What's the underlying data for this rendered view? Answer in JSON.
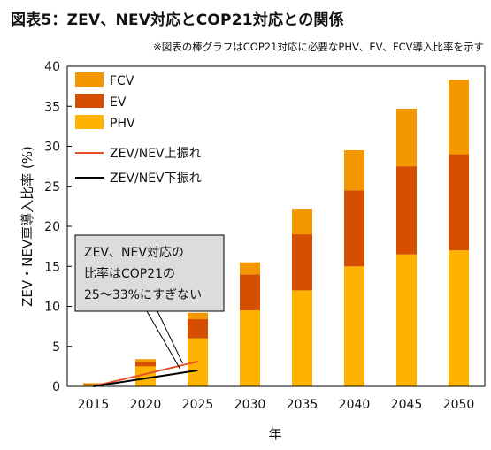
{
  "figure": {
    "title": "図表5：ZEV、NEV対応とCOP21対応との関係",
    "note": "※図表の棒グラフはCOP21対応に必要なPHV、EV、FCV導入比率を示す"
  },
  "chart_data": {
    "type": "bar",
    "stacked": true,
    "categories": [
      "2015",
      "2020",
      "2025",
      "2030",
      "2035",
      "2040",
      "2045",
      "2050"
    ],
    "series": [
      {
        "name": "PHV",
        "color": "#FFB300",
        "values": [
          0.2,
          2.5,
          6.0,
          9.5,
          12.0,
          15.0,
          16.5,
          17.0
        ]
      },
      {
        "name": "EV",
        "color": "#D64F00",
        "values": [
          0.1,
          0.5,
          2.4,
          4.5,
          7.0,
          9.5,
          11.0,
          12.0
        ]
      },
      {
        "name": "FCV",
        "color": "#F39800",
        "values": [
          0.1,
          0.4,
          0.8,
          1.5,
          3.2,
          5.0,
          7.2,
          9.3
        ]
      }
    ],
    "lines": [
      {
        "name": "ZEV/NEV上振れ",
        "color": "#E8502A",
        "x": [
          "2015",
          "2025"
        ],
        "y": [
          0,
          3.1
        ]
      },
      {
        "name": "ZEV/NEV下振れ",
        "color": "#000000",
        "x": [
          "2015",
          "2025"
        ],
        "y": [
          0,
          2.0
        ]
      }
    ],
    "ylabel": "ZEV・NEV車導入比率 (%)",
    "xlabel": "年",
    "ylim": [
      0,
      40
    ],
    "yticks": [
      0,
      5,
      10,
      15,
      20,
      25,
      30,
      35,
      40
    ],
    "grid": false,
    "legend_position": "top-left",
    "annotation": {
      "lines": [
        "ZEV、NEV対応の",
        "比率はCOP21の",
        "25～33%にすぎない"
      ]
    }
  }
}
